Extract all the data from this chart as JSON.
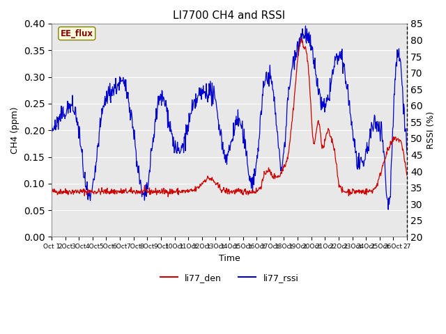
{
  "title": "LI7700 CH4 and RSSI",
  "xlabel": "Time",
  "ylabel_left": "CH4 (ppm)",
  "ylabel_right": "RSSI (%)",
  "annotation": "EE_flux",
  "x_tick_labels": [
    "Oct 1",
    "2Oct",
    "3Oct",
    "4Oct",
    "5Oct",
    "6Oct",
    "7Oct",
    "8Oct",
    "9Oct",
    "10Oct",
    "11Oct",
    "12Oct",
    "13Oct",
    "14Oct",
    "15Oct",
    "16Oct",
    "17Oct",
    "18Oct",
    "19Oct",
    "20Oct",
    "21Oct",
    "22Oct",
    "23Oct",
    "24Oct",
    "25Oct",
    "26Oct",
    "27"
  ],
  "ylim_left": [
    0.0,
    0.4
  ],
  "ylim_right": [
    20,
    85
  ],
  "yticks_left": [
    0.0,
    0.05,
    0.1,
    0.15,
    0.2,
    0.25,
    0.3,
    0.35,
    0.4
  ],
  "yticks_right": [
    20,
    25,
    30,
    35,
    40,
    45,
    50,
    55,
    60,
    65,
    70,
    75,
    80,
    85
  ],
  "color_red": "#cc0000",
  "color_blue": "#0000cc",
  "background_color": "#e8e8e8",
  "legend_labels": [
    "li77_den",
    "li77_rssi"
  ],
  "seed": 42
}
